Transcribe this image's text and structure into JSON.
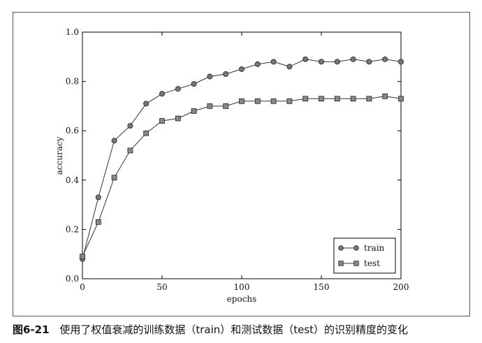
{
  "caption": {
    "figure_number": "图6-21",
    "text": "使用了权值衰减的训练数据（train）和测试数据（test）的识别精度的变化"
  },
  "chart_data": {
    "type": "line",
    "title": "",
    "xlabel": "epochs",
    "ylabel": "accuracy",
    "xlim": [
      0,
      200
    ],
    "ylim": [
      0.0,
      1.0
    ],
    "xticks": [
      "0",
      "50",
      "100",
      "150",
      "200"
    ],
    "yticks": [
      "0.0",
      "0.2",
      "0.4",
      "0.6",
      "0.8",
      "1.0"
    ],
    "grid": false,
    "legend_position": "lower-right",
    "series": [
      {
        "name": "train",
        "marker": "circle",
        "color": "#777777",
        "x": [
          0,
          10,
          20,
          30,
          40,
          50,
          60,
          70,
          80,
          90,
          100,
          110,
          120,
          130,
          140,
          150,
          160,
          170,
          180,
          190,
          200
        ],
        "values": [
          0.08,
          0.33,
          0.56,
          0.62,
          0.71,
          0.75,
          0.77,
          0.79,
          0.82,
          0.83,
          0.85,
          0.87,
          0.88,
          0.86,
          0.89,
          0.88,
          0.88,
          0.89,
          0.88,
          0.89,
          0.88
        ]
      },
      {
        "name": "test",
        "marker": "square",
        "color": "#888888",
        "x": [
          0,
          10,
          20,
          30,
          40,
          50,
          60,
          70,
          80,
          90,
          100,
          110,
          120,
          130,
          140,
          150,
          160,
          170,
          180,
          190,
          200
        ],
        "values": [
          0.09,
          0.23,
          0.41,
          0.52,
          0.59,
          0.64,
          0.65,
          0.68,
          0.7,
          0.7,
          0.72,
          0.72,
          0.72,
          0.72,
          0.73,
          0.73,
          0.73,
          0.73,
          0.73,
          0.74,
          0.73
        ]
      }
    ]
  }
}
